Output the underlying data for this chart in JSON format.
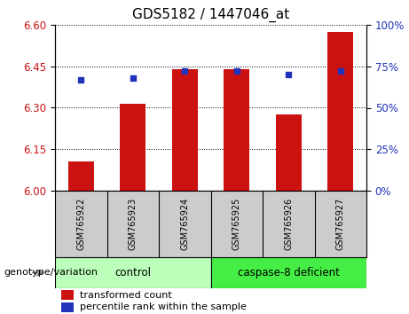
{
  "title": "GDS5182 / 1447046_at",
  "samples": [
    "GSM765922",
    "GSM765923",
    "GSM765924",
    "GSM765925",
    "GSM765926",
    "GSM765927"
  ],
  "transformed_counts": [
    6.105,
    6.315,
    6.44,
    6.44,
    6.275,
    6.575
  ],
  "percentile_ranks": [
    67,
    68,
    72,
    72,
    70,
    72
  ],
  "ylim_left": [
    6.0,
    6.6
  ],
  "ylim_right": [
    0,
    100
  ],
  "yticks_left": [
    6.0,
    6.15,
    6.3,
    6.45,
    6.6
  ],
  "yticks_right": [
    0,
    25,
    50,
    75,
    100
  ],
  "bar_color": "#cc1111",
  "dot_color": "#2233bb",
  "bar_base": 6.0,
  "groups": [
    {
      "label": "control",
      "indices": [
        0,
        1,
        2
      ],
      "color": "#bbffbb"
    },
    {
      "label": "caspase-8 deficient",
      "indices": [
        3,
        4,
        5
      ],
      "color": "#44ee44"
    }
  ],
  "group_label": "genotype/variation",
  "legend_bar_label": "transformed count",
  "legend_dot_label": "percentile rank within the sample",
  "tick_label_color_left": "#cc1111",
  "tick_label_color_right": "#2233bb",
  "title_fontsize": 11,
  "tick_fontsize": 8.5,
  "bar_width": 0.5,
  "xtick_bg_color": "#cccccc",
  "right_axis_percent_labels": [
    "0%",
    "25%",
    "50%",
    "75%",
    "100%"
  ]
}
